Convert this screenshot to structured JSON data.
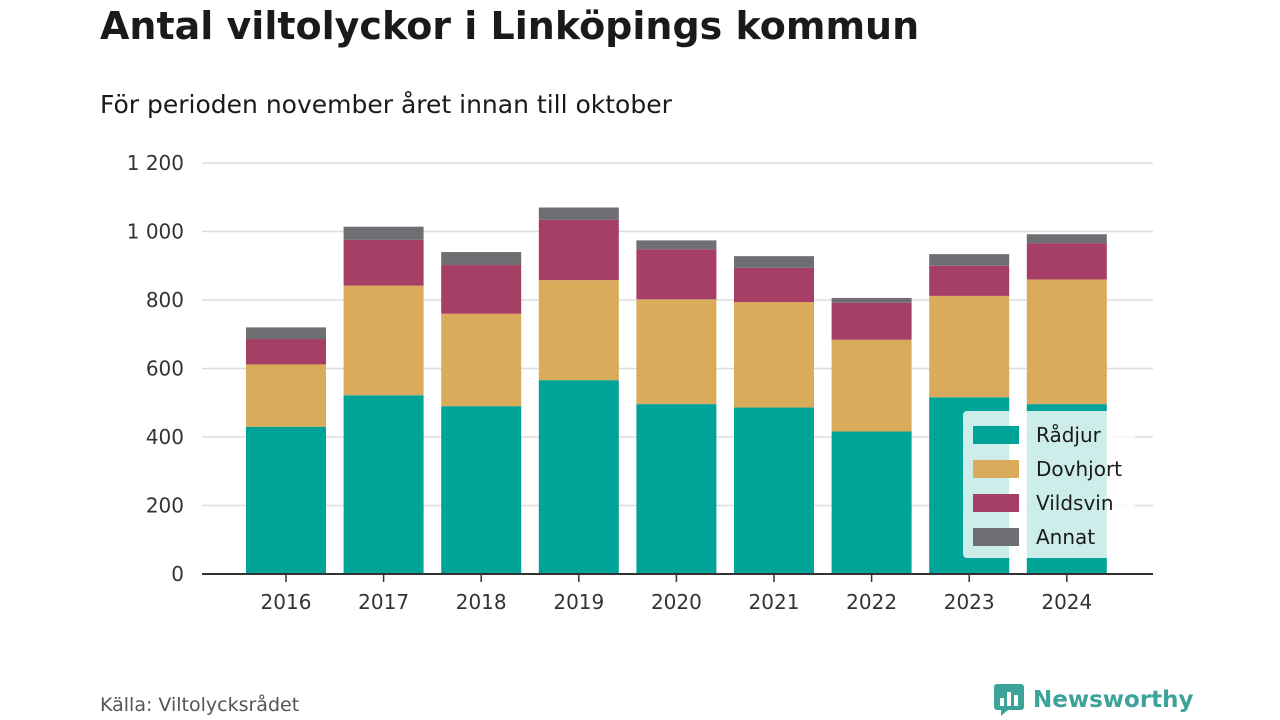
{
  "header": {
    "title": "Antal viltolyckor i Linköpings kommun",
    "subtitle": "För perioden november året innan till oktober"
  },
  "footer": {
    "source": "Källa: Viltolycksrådet",
    "brand": "Newsworthy",
    "brand_icon": "newsworthy-logo-icon"
  },
  "colors": {
    "Rådjur": "#00a398",
    "Dovhjort": "#d9ab5a",
    "Vildsvin": "#a63f66",
    "Annat": "#6e6e73",
    "grid": "#dddddd",
    "axis": "#333333",
    "brand": "#3ca39b"
  },
  "chart_data": {
    "type": "bar",
    "stacked": true,
    "categories": [
      "2016",
      "2017",
      "2018",
      "2019",
      "2020",
      "2021",
      "2022",
      "2023",
      "2024"
    ],
    "series": [
      {
        "name": "Rådjur",
        "values": [
          430,
          522,
          490,
          566,
          496,
          486,
          416,
          516,
          496
        ]
      },
      {
        "name": "Dovhjort",
        "values": [
          182,
          320,
          270,
          292,
          306,
          308,
          268,
          296,
          364
        ]
      },
      {
        "name": "Vildsvin",
        "values": [
          74,
          134,
          142,
          176,
          146,
          100,
          108,
          88,
          106
        ]
      },
      {
        "name": "Annat",
        "values": [
          34,
          38,
          38,
          36,
          26,
          34,
          14,
          34,
          26
        ]
      }
    ],
    "yticks": [
      "0",
      "200",
      "400",
      "600",
      "800",
      "1 000",
      "1 200"
    ],
    "ylim": [
      0,
      1200
    ],
    "grid": true,
    "legend_position": "bottom-right"
  }
}
